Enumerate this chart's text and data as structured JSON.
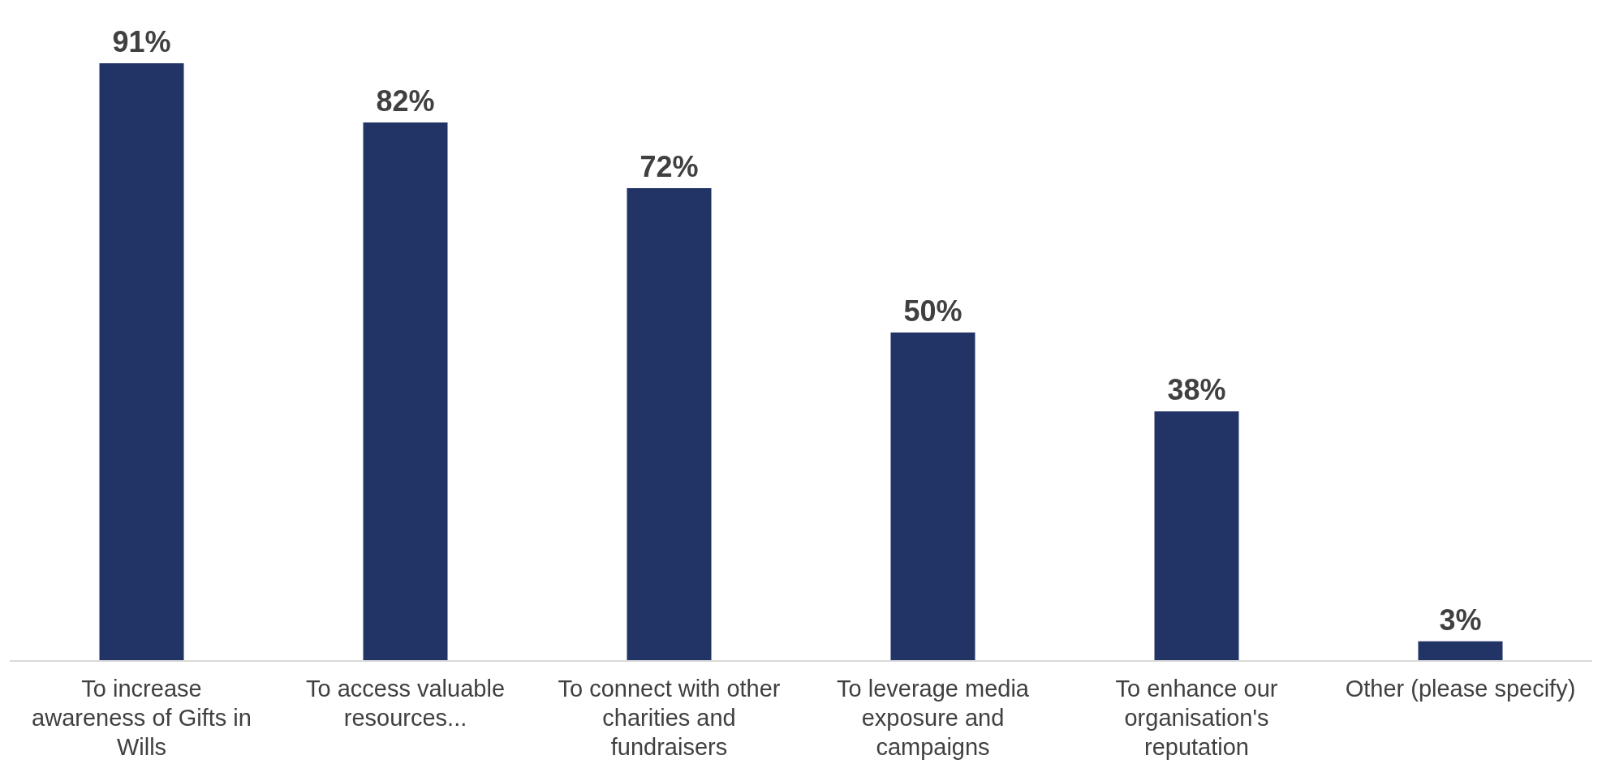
{
  "chart_data": {
    "type": "bar",
    "categories": [
      "To increase awareness of Gifts in Wills",
      "To access valuable resources...",
      "To connect with other charities and fundraisers",
      "To leverage media exposure and campaigns",
      "To enhance our organisation's reputation",
      "Other (please specify)"
    ],
    "values": [
      91,
      82,
      72,
      50,
      38,
      3
    ],
    "value_labels": [
      "91%",
      "82%",
      "72%",
      "50%",
      "38%",
      "3%"
    ],
    "color": "#223366",
    "grid": false,
    "legend": false
  }
}
